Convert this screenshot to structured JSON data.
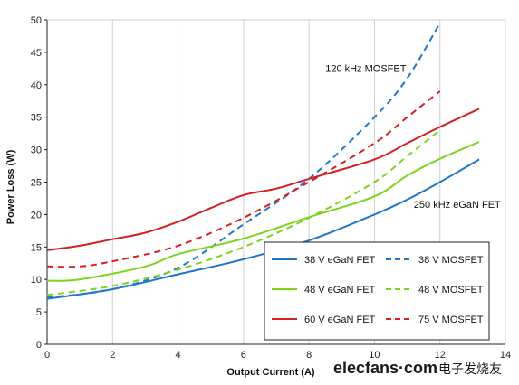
{
  "chart_data": {
    "type": "line",
    "xlabel": "Output Current (A)",
    "ylabel": "Power Loss (W)",
    "xlim": [
      0,
      14
    ],
    "ylim": [
      0,
      50
    ],
    "xticks": [
      0,
      2,
      4,
      6,
      8,
      10,
      12,
      14
    ],
    "yticks": [
      0,
      5,
      10,
      15,
      20,
      25,
      30,
      35,
      40,
      45,
      50
    ],
    "grid": "vertical",
    "legend_position": "lower-right",
    "annotations": [
      {
        "text": "120 kHz MOSFET",
        "x": 8.5,
        "y": 42
      },
      {
        "text": "250 kHz eGaN FET",
        "x": 11.2,
        "y": 21
      }
    ],
    "series": [
      {
        "name": "38 V eGaN FET",
        "color": "#1f77c8",
        "dash": false,
        "points": [
          [
            0,
            7
          ],
          [
            2,
            8.5
          ],
          [
            4,
            10.8
          ],
          [
            6,
            13.1
          ],
          [
            8,
            16
          ],
          [
            10,
            20
          ],
          [
            11,
            22.3
          ],
          [
            12,
            25
          ],
          [
            13.2,
            28.5
          ]
        ]
      },
      {
        "name": "38 V MOSFET",
        "color": "#1f77c8",
        "dash": true,
        "points": [
          [
            0,
            7.2
          ],
          [
            2,
            8.5
          ],
          [
            4,
            11.8
          ],
          [
            6,
            18.5
          ],
          [
            8,
            25.5
          ],
          [
            10,
            35
          ],
          [
            11,
            41
          ],
          [
            12,
            49.5
          ]
        ]
      },
      {
        "name": "48 V eGaN FET",
        "color": "#7ed321",
        "dash": false,
        "points": [
          [
            0,
            9.8
          ],
          [
            1,
            10
          ],
          [
            3,
            12
          ],
          [
            4,
            13.9
          ],
          [
            6,
            16.3
          ],
          [
            8,
            19.6
          ],
          [
            10,
            22.8
          ],
          [
            11,
            26
          ],
          [
            12,
            28.6
          ],
          [
            13.2,
            31.2
          ]
        ]
      },
      {
        "name": "48 V MOSFET",
        "color": "#7ed321",
        "dash": true,
        "points": [
          [
            0,
            7.6
          ],
          [
            2,
            9
          ],
          [
            4,
            11.5
          ],
          [
            6,
            15
          ],
          [
            8,
            19.5
          ],
          [
            10,
            25
          ],
          [
            11,
            29
          ],
          [
            12,
            33
          ]
        ]
      },
      {
        "name": "60 V eGaN FET",
        "color": "#d42020",
        "dash": false,
        "points": [
          [
            0,
            14.5
          ],
          [
            1,
            15.2
          ],
          [
            2,
            16.2
          ],
          [
            3,
            17.2
          ],
          [
            4,
            18.9
          ],
          [
            5,
            21
          ],
          [
            6,
            23
          ],
          [
            7,
            24
          ],
          [
            8,
            25.5
          ],
          [
            10,
            28.5
          ],
          [
            11,
            31
          ],
          [
            12,
            33.5
          ],
          [
            13.2,
            36.3
          ]
        ]
      },
      {
        "name": "75 V MOSFET",
        "color": "#d42020",
        "dash": true,
        "points": [
          [
            0,
            12
          ],
          [
            1,
            12
          ],
          [
            2,
            12.8
          ],
          [
            4,
            15.2
          ],
          [
            6,
            19.5
          ],
          [
            8,
            25
          ],
          [
            10,
            31
          ],
          [
            11,
            35
          ],
          [
            12,
            39
          ]
        ]
      }
    ]
  },
  "watermark": {
    "latin": "elecfans·com",
    "cjk": "电子发烧友"
  }
}
